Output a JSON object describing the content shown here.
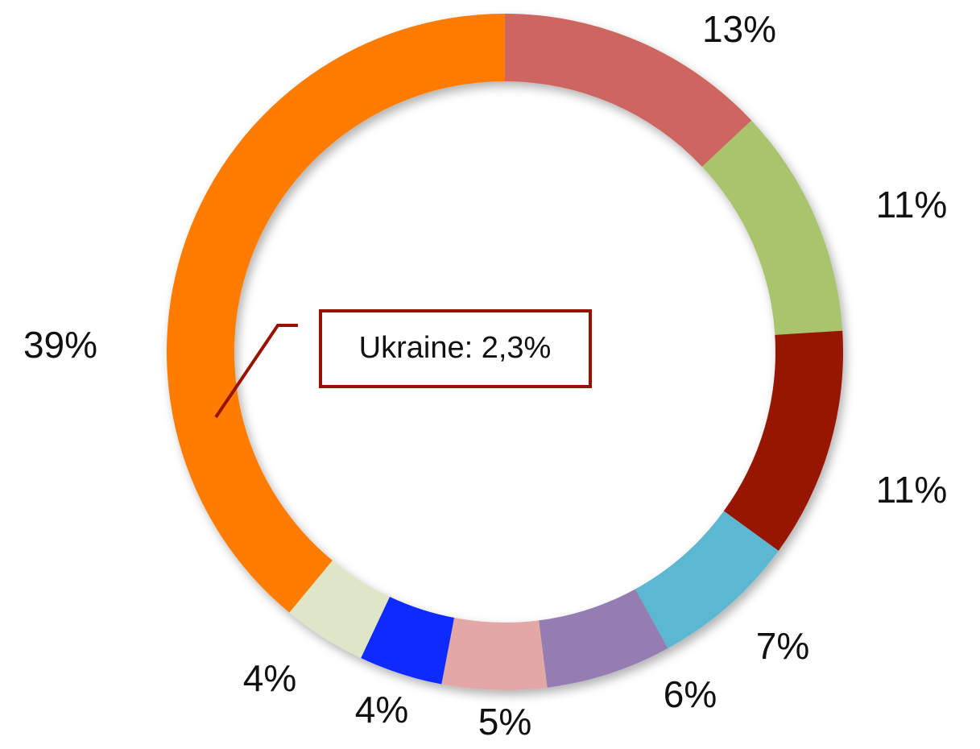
{
  "chart_data": {
    "type": "donut",
    "values": [
      13,
      11,
      11,
      7,
      6,
      5,
      4,
      4,
      39
    ],
    "value_labels": [
      "13%",
      "11%",
      "11%",
      "7%",
      "6%",
      "5%",
      "4%",
      "4%",
      "39%"
    ],
    "colors": [
      "#cd6660",
      "#a9c46c",
      "#971200",
      "#5bb8d0",
      "#957bb2",
      "#e3a7a6",
      "#0a2cff",
      "#dfe6c8",
      "#ff7c00"
    ],
    "annotation": "Ukraine: 2,3%"
  }
}
